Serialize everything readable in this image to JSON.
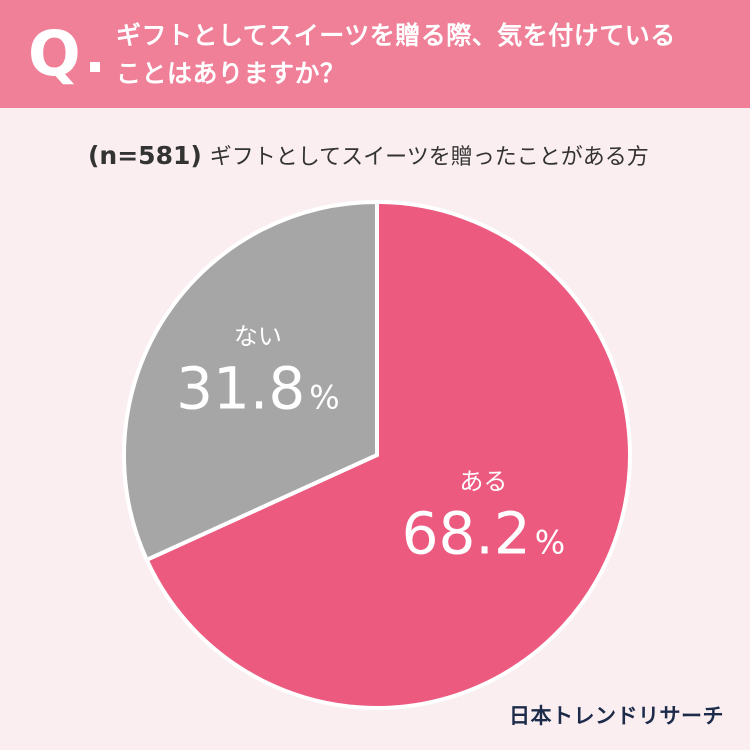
{
  "header": {
    "q_mark": "Q",
    "question_line1": "ギフトとしてスイーツを贈る際、気を付けている",
    "question_line2": "ことはありますか？"
  },
  "subtitle": {
    "sample": "(n=581)",
    "respondents": "ギフトとしてスイーツを贈ったことがある方"
  },
  "footer": {
    "brand": "日本トレンドリサーチ"
  },
  "colors": {
    "header_bg": "#f07f98",
    "page_bg": "#fbeef0",
    "ある": "#ec5a80",
    "ない": "#a6a6a6"
  },
  "chart_data": {
    "type": "pie",
    "title": "",
    "slices": [
      {
        "label": "ある",
        "value": 68.2,
        "display": "68.2",
        "unit": "%",
        "color": "#ec5a80"
      },
      {
        "label": "ない",
        "value": 31.8,
        "display": "31.8",
        "unit": "%",
        "color": "#a6a6a6"
      }
    ],
    "start": "top",
    "direction": "clockwise"
  }
}
